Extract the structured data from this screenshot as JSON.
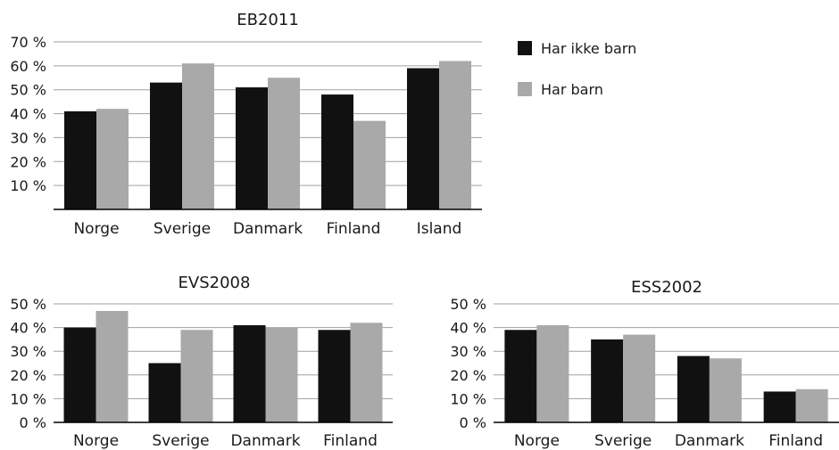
{
  "legend": {
    "items": [
      {
        "label": "Har ikke barn",
        "color": "#111111"
      },
      {
        "label": "Har barn",
        "color": "#a9a9a9"
      }
    ]
  },
  "chart_data": [
    {
      "type": "bar",
      "title": "EB2011",
      "categories": [
        "Norge",
        "Sverige",
        "Danmark",
        "Finland",
        "Island"
      ],
      "series": [
        {
          "name": "Har ikke barn",
          "values": [
            41,
            53,
            51,
            48,
            59
          ],
          "color": "#111111"
        },
        {
          "name": "Har barn",
          "values": [
            42,
            61,
            55,
            37,
            62
          ],
          "color": "#a9a9a9"
        }
      ],
      "ylim": [
        0,
        70
      ],
      "yticks": [
        "",
        "10 %",
        "20 %",
        "30 %",
        "40 %",
        "50 %",
        "60 %",
        "70 %"
      ],
      "grid": true
    },
    {
      "type": "bar",
      "title": "EVS2008",
      "categories": [
        "Norge",
        "Sverige",
        "Danmark",
        "Finland"
      ],
      "series": [
        {
          "name": "Har ikke barn",
          "values": [
            40,
            25,
            41,
            39
          ],
          "color": "#111111"
        },
        {
          "name": "Har barn",
          "values": [
            47,
            39,
            40,
            42
          ],
          "color": "#a9a9a9"
        }
      ],
      "ylim": [
        0,
        50
      ],
      "yticks": [
        "0 %",
        "10 %",
        "20 %",
        "30 %",
        "40 %",
        "50 %"
      ],
      "grid": true
    },
    {
      "type": "bar",
      "title": "ESS2002",
      "categories": [
        "Norge",
        "Sverige",
        "Danmark",
        "Finland"
      ],
      "series": [
        {
          "name": "Har ikke barn",
          "values": [
            39,
            35,
            28,
            13
          ],
          "color": "#111111"
        },
        {
          "name": "Har barn",
          "values": [
            41,
            37,
            27,
            14
          ],
          "color": "#a9a9a9"
        }
      ],
      "ylim": [
        0,
        50
      ],
      "yticks": [
        "0 %",
        "10 %",
        "20 %",
        "30 %",
        "40 %",
        "50 %"
      ],
      "grid": true
    }
  ]
}
